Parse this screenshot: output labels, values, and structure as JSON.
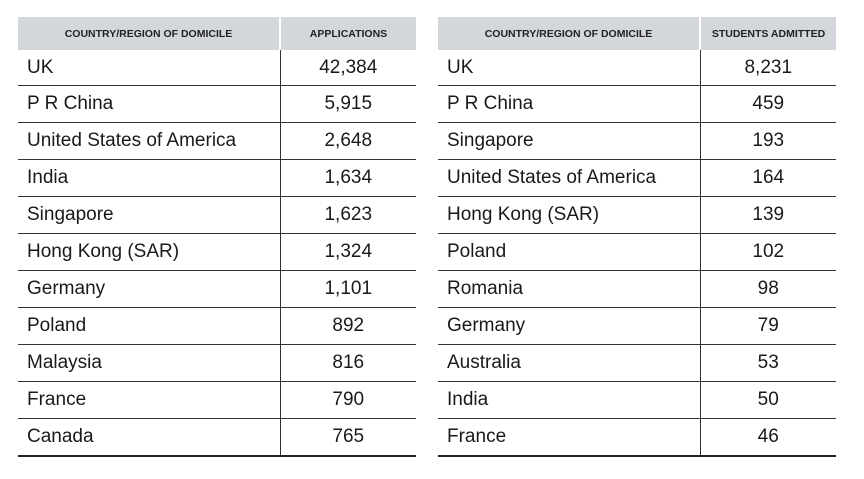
{
  "left_table": {
    "header": {
      "country": "COUNTRY/REGION OF DOMICILE",
      "value": "APPLICATIONS"
    },
    "rows": [
      {
        "country": "UK",
        "value": "42,384"
      },
      {
        "country": "P R China",
        "value": "5,915"
      },
      {
        "country": "United States of America",
        "value": "2,648"
      },
      {
        "country": "India",
        "value": "1,634"
      },
      {
        "country": "Singapore",
        "value": "1,623"
      },
      {
        "country": "Hong Kong (SAR)",
        "value": "1,324"
      },
      {
        "country": "Germany",
        "value": "1,101"
      },
      {
        "country": "Poland",
        "value": "892"
      },
      {
        "country": "Malaysia",
        "value": "816"
      },
      {
        "country": "France",
        "value": "790"
      },
      {
        "country": "Canada",
        "value": "765"
      }
    ]
  },
  "right_table": {
    "header": {
      "country": "COUNTRY/REGION OF DOMICILE",
      "value": "STUDENTS ADMITTED"
    },
    "rows": [
      {
        "country": "UK",
        "value": "8,231"
      },
      {
        "country": "P R China",
        "value": "459"
      },
      {
        "country": "Singapore",
        "value": "193"
      },
      {
        "country": "United States of America",
        "value": "164"
      },
      {
        "country": "Hong Kong (SAR)",
        "value": "139"
      },
      {
        "country": "Poland",
        "value": "102"
      },
      {
        "country": "Romania",
        "value": "98"
      },
      {
        "country": "Germany",
        "value": "79"
      },
      {
        "country": "Australia",
        "value": "53"
      },
      {
        "country": "India",
        "value": "50"
      },
      {
        "country": "France",
        "value": "46"
      }
    ]
  }
}
